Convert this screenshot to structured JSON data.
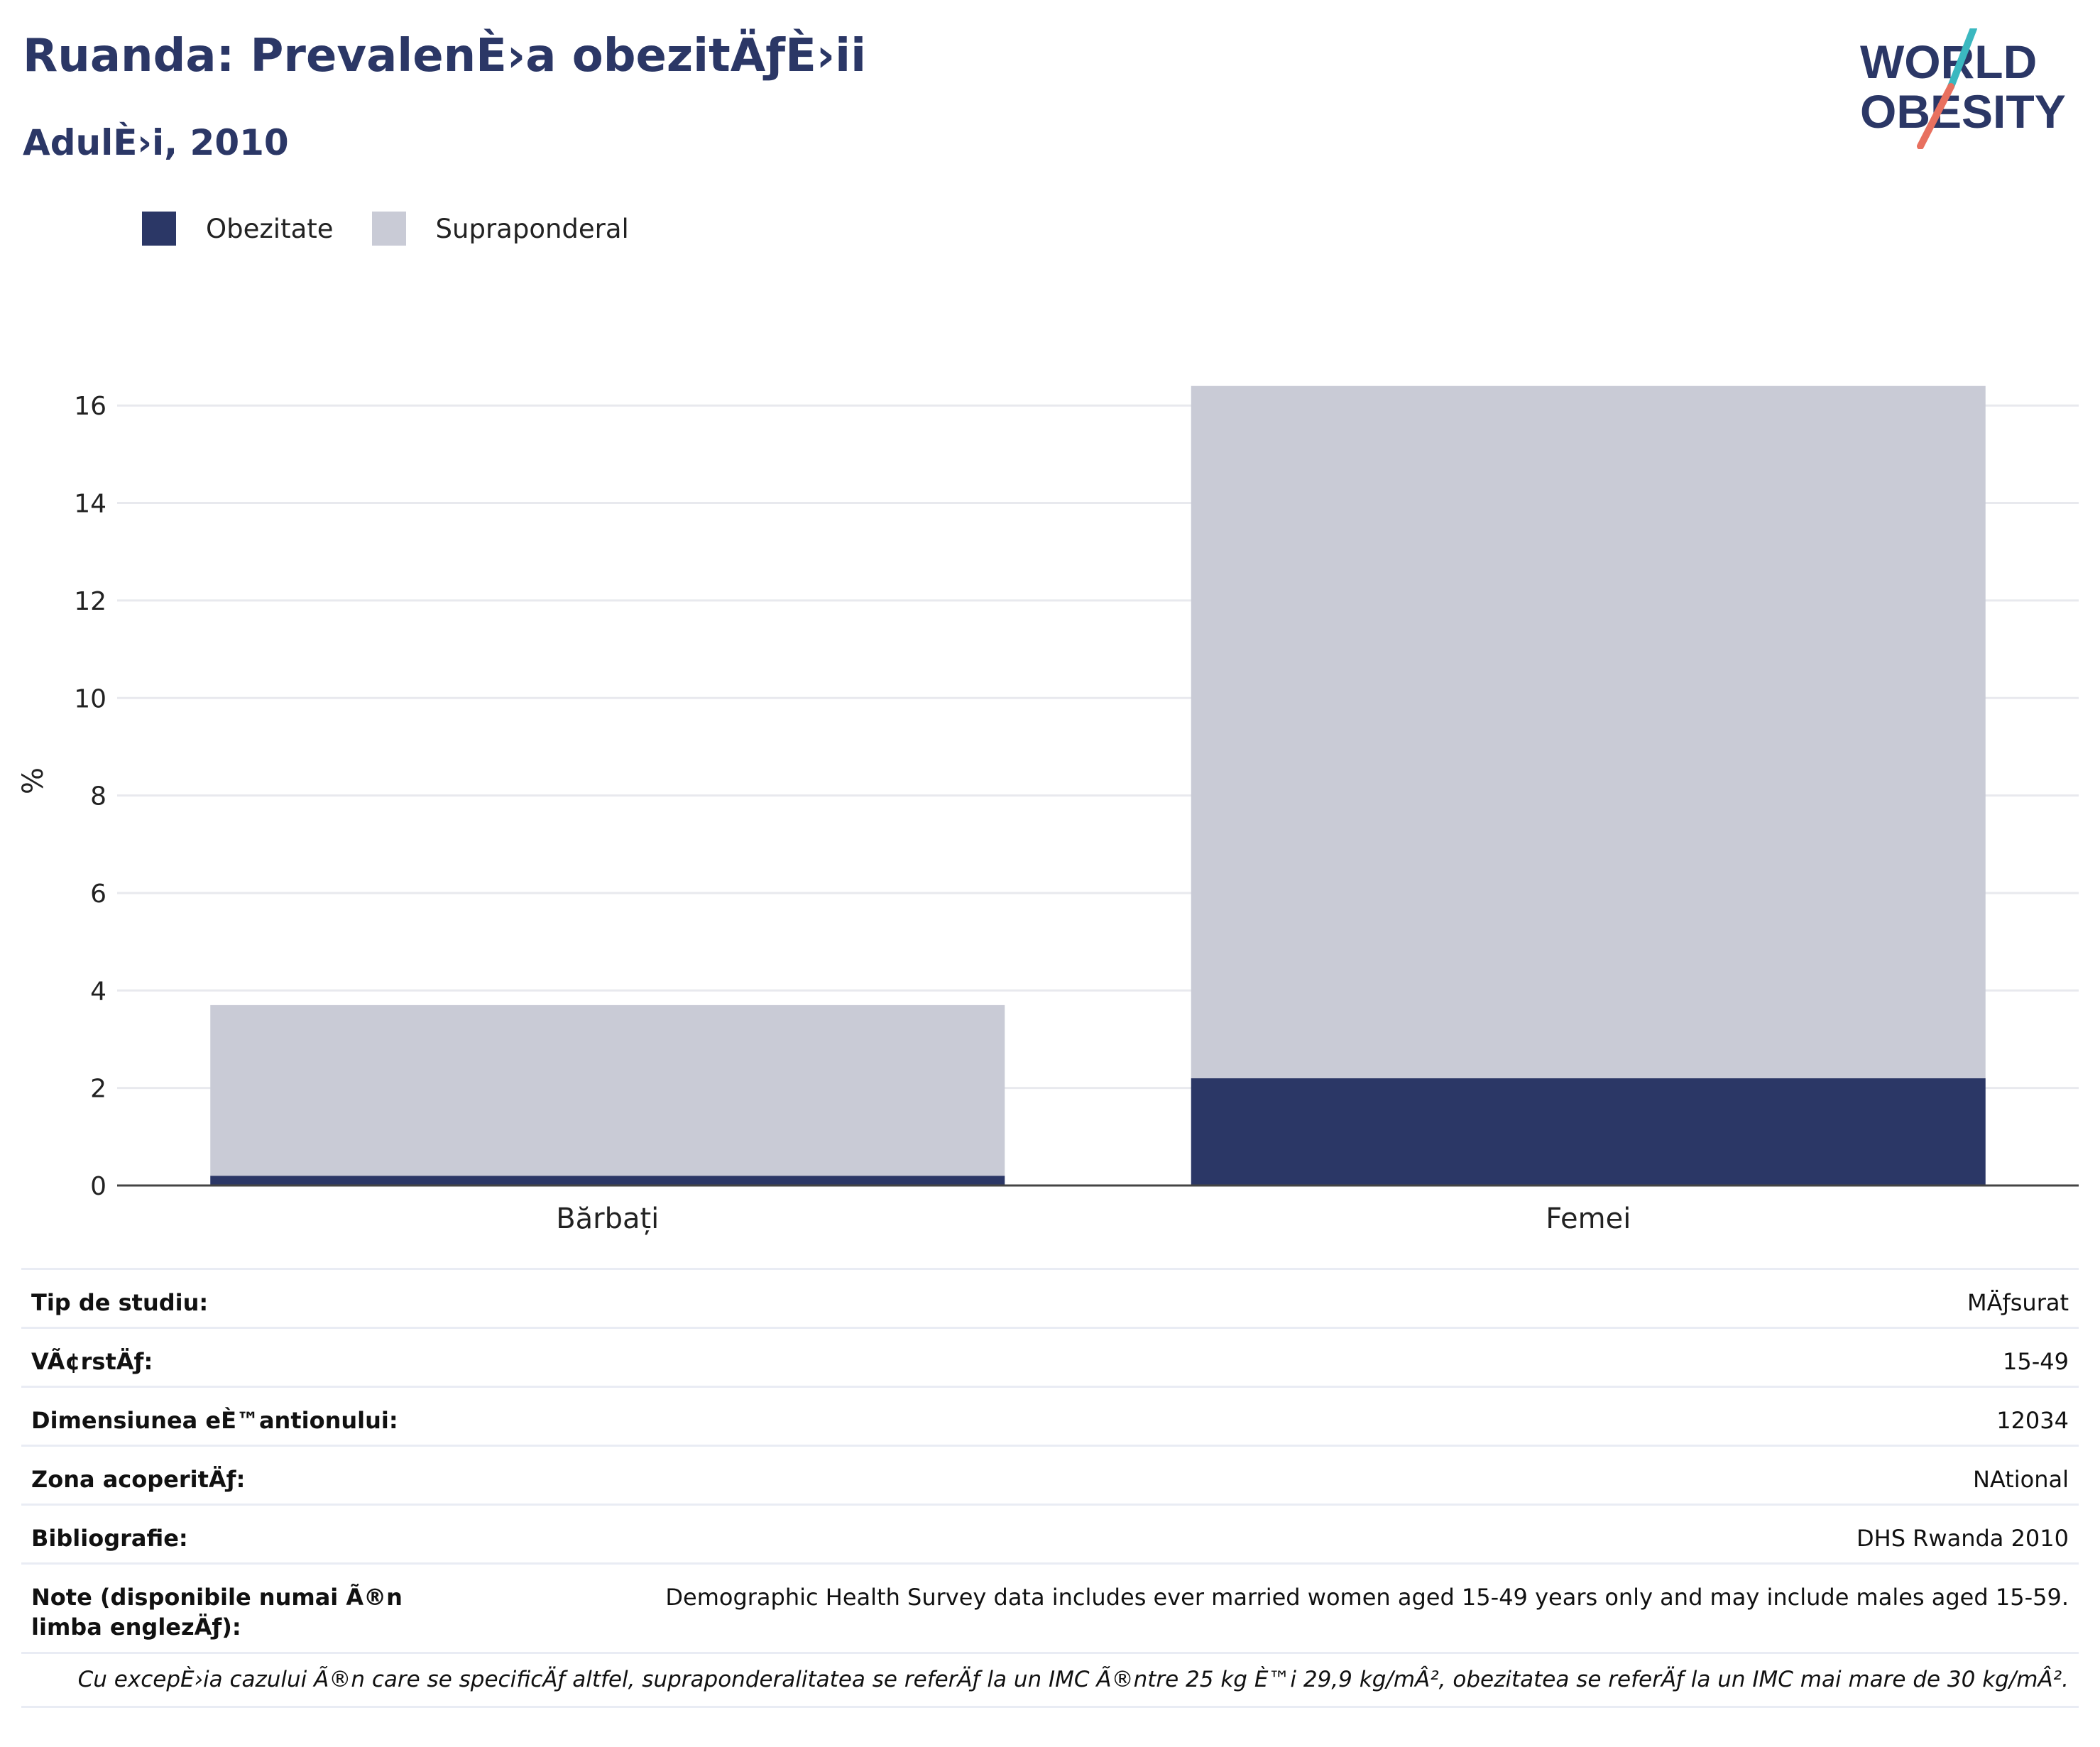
{
  "header": {
    "title": "Ruanda: PrevalenÈ›a obezitÄƒÈ›ii",
    "subtitle": "AdulÈ›i, 2010"
  },
  "logo": {
    "line1": "WORLD",
    "line2": "OBESITY",
    "icon": "world-obesity-logo"
  },
  "colors": {
    "obesity": "#2b3766",
    "overweight": "#c9cbd6",
    "brand": "#2b3766",
    "accent_teal": "#3bb8c0",
    "accent_coral": "#e8705f"
  },
  "chart_data": {
    "type": "bar",
    "stacked": true,
    "categories": [
      "Bărbați",
      "Femei"
    ],
    "series": [
      {
        "name": "Obezitate",
        "values": [
          0.2,
          2.2
        ]
      },
      {
        "name": "Supraponderal",
        "values": [
          3.5,
          14.2
        ]
      }
    ],
    "ylabel": "%",
    "ylim": [
      0,
      16.6
    ],
    "yticks": [
      0,
      2,
      4,
      6,
      8,
      10,
      12,
      14,
      16
    ],
    "grid": true,
    "legend": "top-left"
  },
  "info": [
    {
      "key": "Tip de studiu:",
      "value": "MÄƒsurat"
    },
    {
      "key": "VÃ¢rstÄƒ:",
      "value": "15-49"
    },
    {
      "key": "Dimensiunea eÈ™antionului:",
      "value": "12034"
    },
    {
      "key": "Zona acoperitÄƒ:",
      "value": "NAtional"
    },
    {
      "key": "Bibliografie:",
      "value": "DHS Rwanda 2010"
    },
    {
      "key": "Note (disponibile numai Ã®n limba englezÄƒ):",
      "value": "Demographic Health Survey data includes ever married women aged 15-49 years only and may include males aged 15-59."
    }
  ],
  "footnote": "Cu excepÈ›ia cazului Ã®n care se specificÄƒ altfel, supraponderalitatea se referÄƒ la un IMC Ã®ntre 25 kg È™i 29,9 kg/mÂ², obezitatea se referÄƒ la un IMC mai mare de 30 kg/mÂ²."
}
